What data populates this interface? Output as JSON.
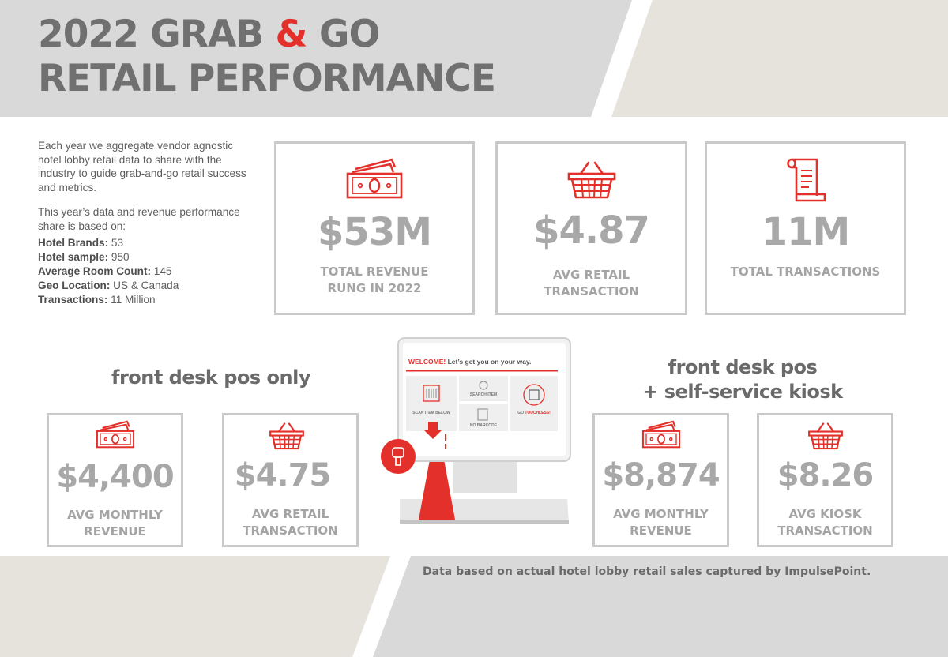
{
  "header": {
    "title_line1_part1": "2022 GRAB ",
    "title_amp": "&",
    "title_line1_part2": " GO",
    "title_line2": "RETAIL PERFORMANCE"
  },
  "intro": {
    "paragraph1": "Each year we aggregate vendor agnostic hotel lobby retail data to share with the industry to guide grab-and-go retail success and metrics.",
    "paragraph2": "This year’s data and revenue performance share is based on:",
    "facts": [
      {
        "label": "Hotel Brands:",
        "value": " 53"
      },
      {
        "label": "Hotel sample:",
        "value": " 950"
      },
      {
        "label": "Average Room Count:",
        "value": " 145"
      },
      {
        "label": "Geo Location:",
        "value": " US & Canada"
      },
      {
        "label": "Transactions:",
        "value": " 11 Million"
      }
    ]
  },
  "top_stats": [
    {
      "value": "$53M",
      "label_line1": "TOTAL REVENUE",
      "label_line2": "RUNG IN 2022",
      "icon": "money-icon"
    },
    {
      "value": "$4.87",
      "label_line1": "AVG RETAIL",
      "label_line2": "TRANSACTION",
      "icon": "basket-icon"
    },
    {
      "value": "11M",
      "label_line1": "TOTAL TRANSACTIONS",
      "label_line2": "",
      "icon": "receipt-icon"
    }
  ],
  "front_desk": {
    "heading": "front desk pos only",
    "stats": [
      {
        "value": "$4,400",
        "label_line1": "AVG MONTHLY",
        "label_line2": "REVENUE",
        "icon": "money-icon"
      },
      {
        "value": "$4.75",
        "label_line1": "AVG RETAIL",
        "label_line2": "TRANSACTION",
        "icon": "basket-icon"
      }
    ]
  },
  "kiosk_section": {
    "heading_line1": "front desk pos",
    "heading_line2": "+ self-service kiosk",
    "stats": [
      {
        "value": "$8,874",
        "label_line1": "AVG MONTHLY",
        "label_line2": "REVENUE",
        "icon": "money-icon"
      },
      {
        "value": "$8.26",
        "label_line1": "AVG KIOSK",
        "label_line2": "TRANSACTION",
        "icon": "basket-icon"
      }
    ]
  },
  "kiosk_screen": {
    "welcome": "WELCOME!",
    "welcome_rest": " Let’s get you on your way.",
    "scan_label": "SCAN ITEM BELOW",
    "search_label": "SEARCH ITEM",
    "no_barcode_label": "NO BARCODE",
    "go_label": "GO ",
    "touchless_label": "TOUCHLESS!"
  },
  "footer": {
    "note": "Data based on actual  hotel lobby retail sales captured by ImpulsePoint."
  },
  "colors": {
    "accent": "#e4302a",
    "heading_gray": "#707070",
    "stat_gray": "#a8a8a8",
    "band_gray": "#d9d9d9",
    "band_beige": "#e6e3dc",
    "card_border": "#c9c9c9"
  }
}
